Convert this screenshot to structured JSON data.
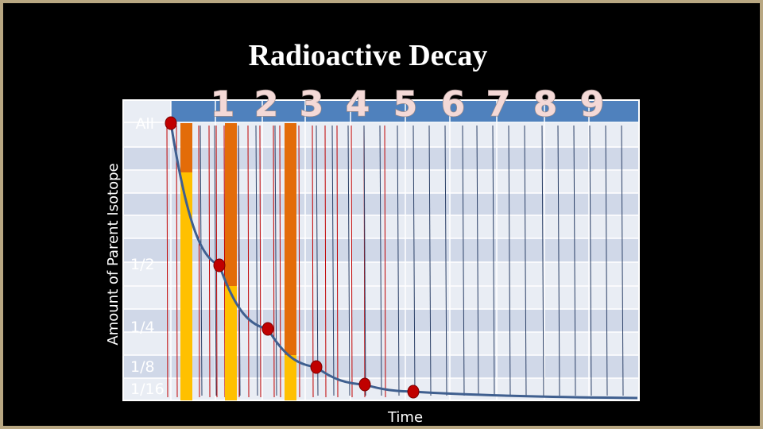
{
  "slide": {
    "title": "Radioactive Decay"
  },
  "chart_data": {
    "type": "line",
    "title": "Radioactive Decay",
    "xlabel": "Time",
    "ylabel": "Amount of Parent Isotope",
    "half_life_labels": [
      "1",
      "2",
      "3",
      "4",
      "5",
      "6",
      "7",
      "8",
      "9"
    ],
    "y_tick_labels": [
      "All",
      "1/2",
      "1/4",
      "1/8",
      "1/16"
    ],
    "y_tick_values": [
      1,
      0.5,
      0.25,
      0.125,
      0.0625
    ],
    "x": [
      0,
      1,
      2,
      3,
      4,
      5
    ],
    "series": [
      {
        "values": [
          1,
          0.5,
          0.25,
          0.125,
          0.0625,
          0.03125
        ]
      }
    ],
    "bar_values": [
      1,
      0.5,
      0.25
    ],
    "colors": {
      "curve": "#3f5f8f",
      "point": "#c00000",
      "remaining_fill": "#ffc000",
      "decayed_fill": "#e36c09",
      "header": "#4f81bd",
      "band_light": "#e9edf4",
      "band_dark": "#d0d8e8"
    }
  }
}
